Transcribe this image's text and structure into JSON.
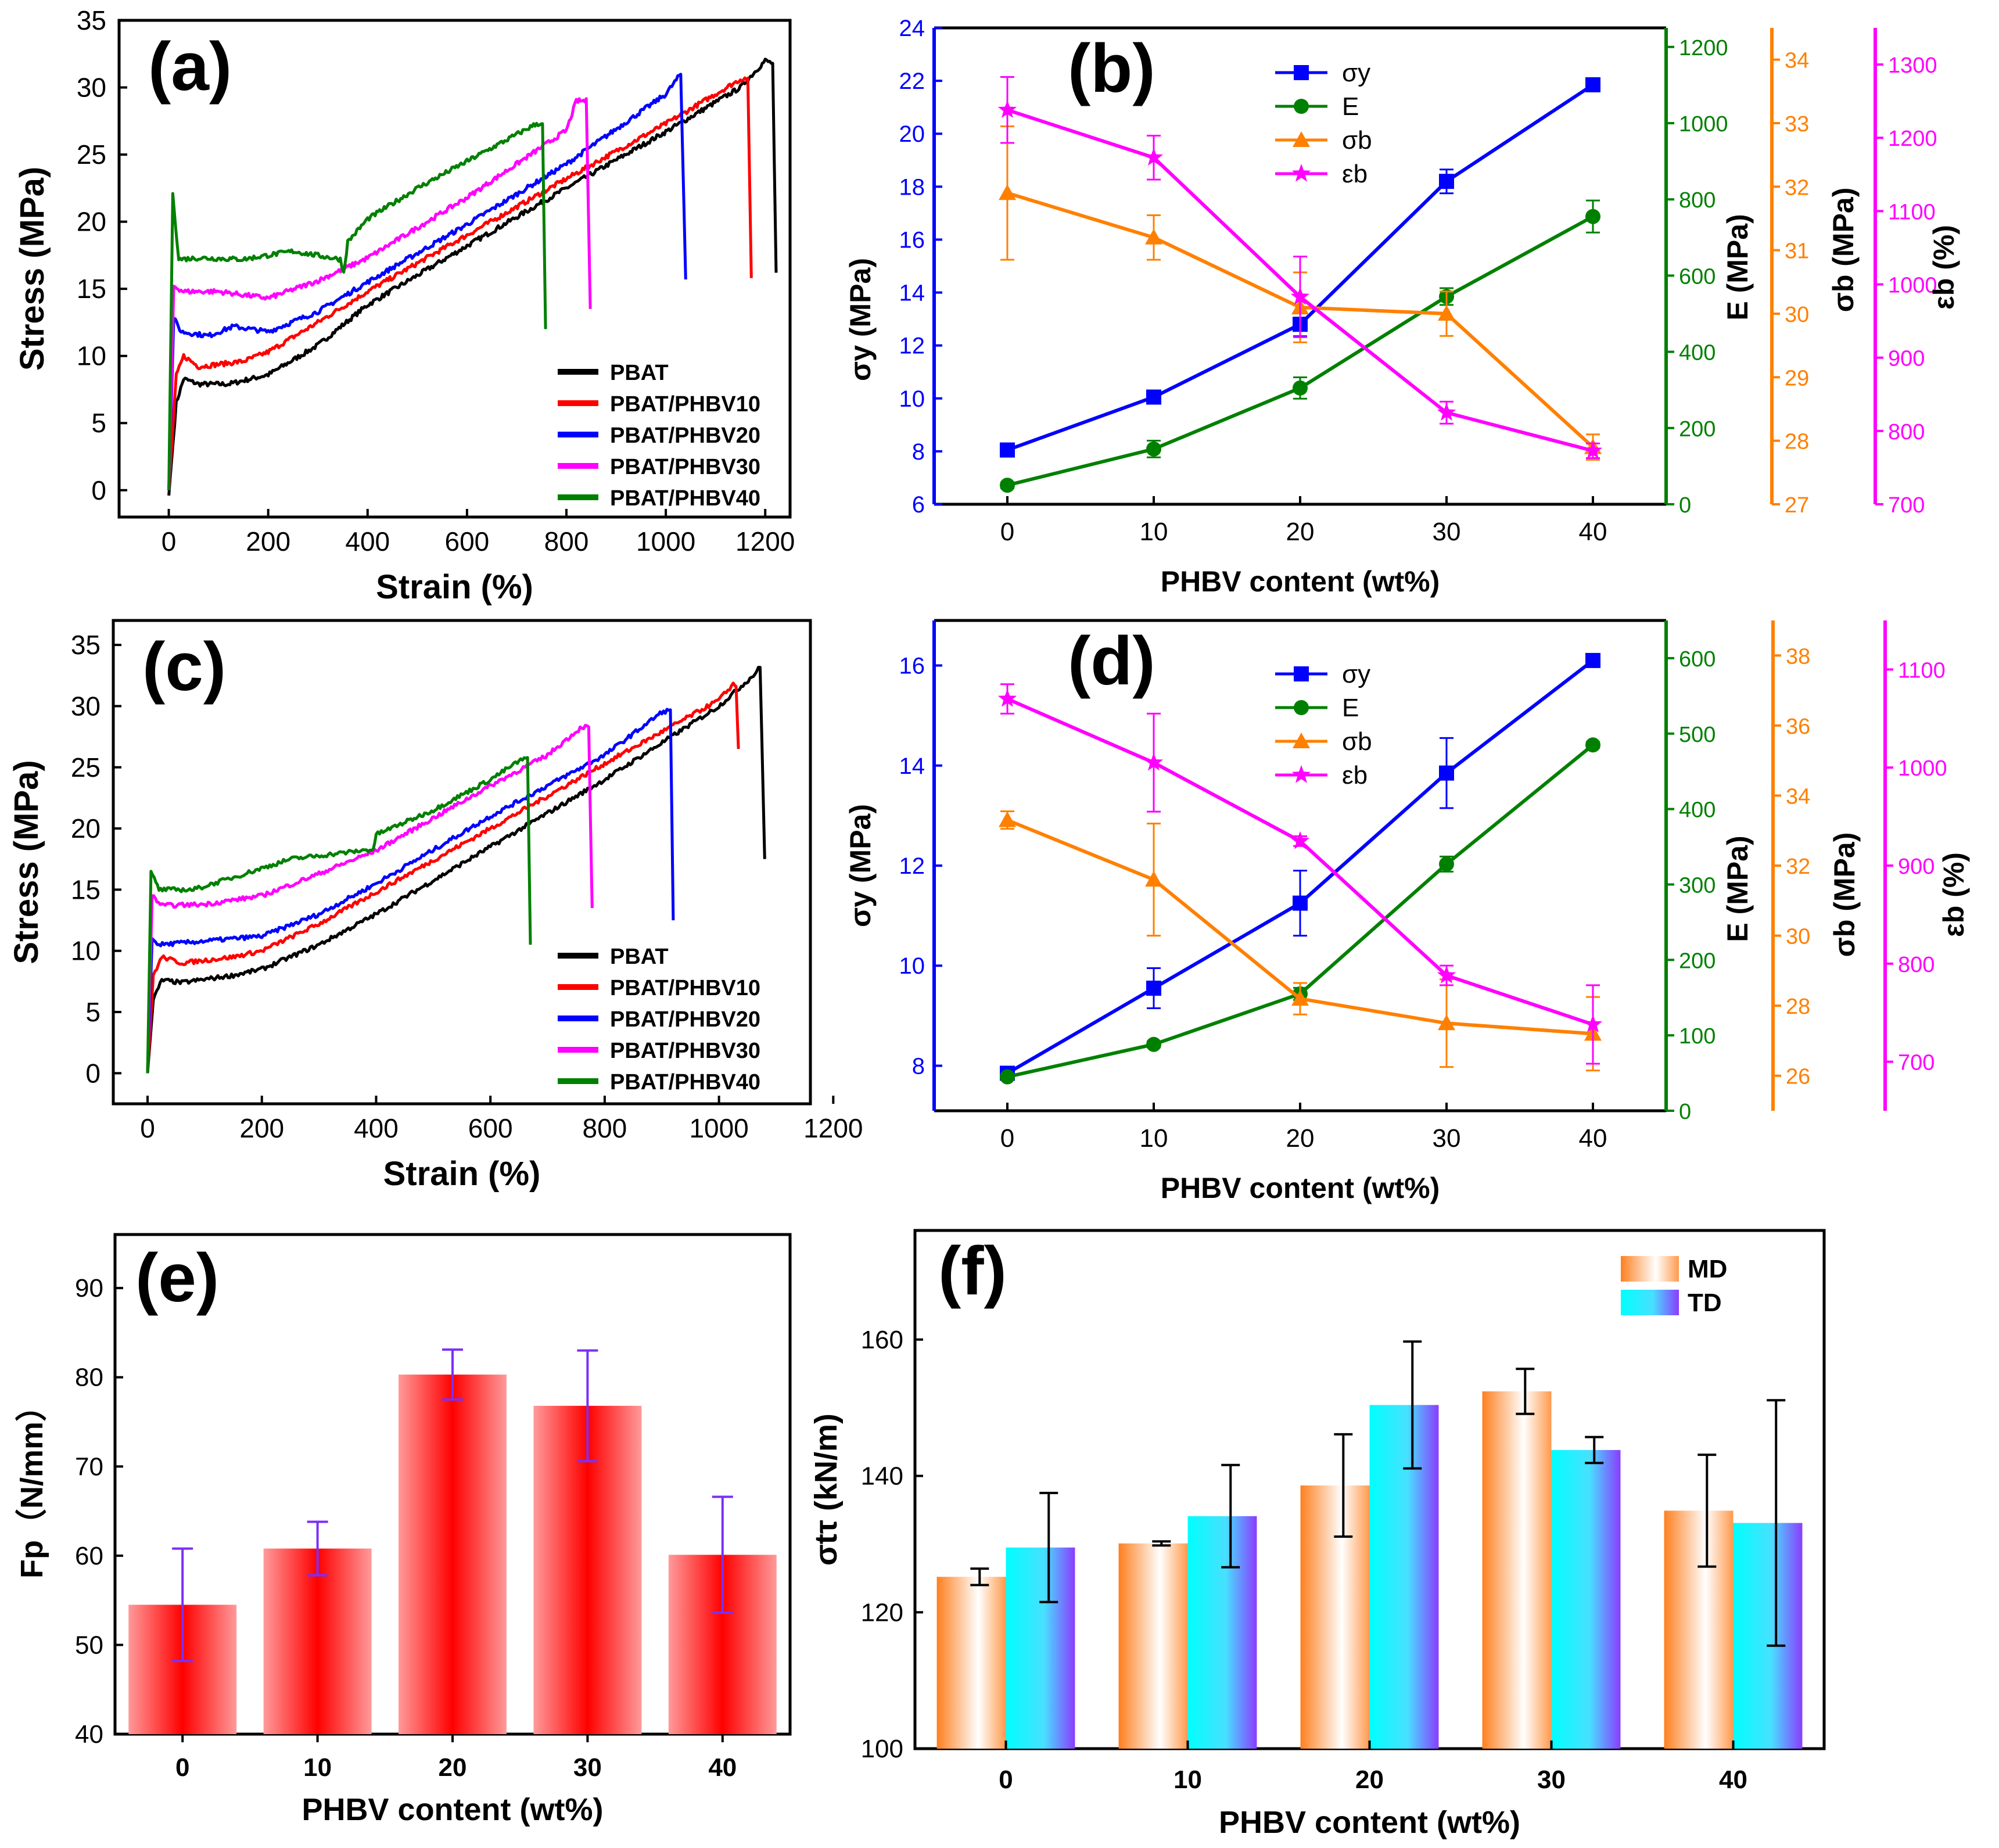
{
  "chart_data": [
    {
      "id": "a",
      "type": "line",
      "panel_label": "(a)",
      "xlabel": "Strain  (%)",
      "ylabel": "Stress  (MPa)",
      "xlim": [
        -100,
        1250
      ],
      "ylim": [
        -2,
        35
      ],
      "xticks": [
        0,
        200,
        400,
        600,
        800,
        1000,
        1200
      ],
      "yticks": [
        0,
        5,
        10,
        15,
        20,
        25,
        30,
        35
      ],
      "legend_position": "bottom-right",
      "series": [
        {
          "name": "PBAT",
          "color": "#000000",
          "points": [
            [
              0,
              -0.4
            ],
            [
              15,
              6.5
            ],
            [
              30,
              8.3
            ],
            [
              60,
              7.9
            ],
            [
              120,
              7.9
            ],
            [
              200,
              8.6
            ],
            [
              300,
              10.8
            ],
            [
              400,
              13.8
            ],
            [
              600,
              18.2
            ],
            [
              800,
              22.5
            ],
            [
              1000,
              26.7
            ],
            [
              1150,
              30
            ],
            [
              1200,
              32
            ],
            [
              1215,
              31.8
            ],
            [
              1222,
              16.2
            ]
          ]
        },
        {
          "name": "PBAT/PHBV10",
          "color": "#ff0000",
          "points": [
            [
              0,
              0
            ],
            [
              15,
              8.5
            ],
            [
              30,
              10
            ],
            [
              60,
              9.2
            ],
            [
              150,
              9.6
            ],
            [
              200,
              10.3
            ],
            [
              300,
              12.5
            ],
            [
              400,
              14.8
            ],
            [
              600,
              19
            ],
            [
              800,
              23.2
            ],
            [
              1000,
              27.3
            ],
            [
              1150,
              30.6
            ],
            [
              1165,
              30.7
            ],
            [
              1172,
              15.8
            ]
          ]
        },
        {
          "name": "PBAT/PHBV20",
          "color": "#0000ff",
          "points": [
            [
              0,
              0
            ],
            [
              10,
              12.8
            ],
            [
              25,
              11.8
            ],
            [
              80,
              11.5
            ],
            [
              130,
              12.2
            ],
            [
              200,
              11.8
            ],
            [
              300,
              13.3
            ],
            [
              400,
              15.5
            ],
            [
              600,
              19.8
            ],
            [
              800,
              24.3
            ],
            [
              1000,
              29.5
            ],
            [
              1030,
              31
            ],
            [
              1040,
              15.7
            ]
          ]
        },
        {
          "name": "PBAT/PHBV30",
          "color": "#ff00ff",
          "points": [
            [
              0,
              0
            ],
            [
              10,
              15.2
            ],
            [
              30,
              14.8
            ],
            [
              100,
              14.8
            ],
            [
              200,
              14.3
            ],
            [
              300,
              15.6
            ],
            [
              400,
              17.3
            ],
            [
              600,
              21.8
            ],
            [
              800,
              26.8
            ],
            [
              820,
              29
            ],
            [
              840,
              29
            ],
            [
              848,
              13.5
            ]
          ]
        },
        {
          "name": "PBAT/PHBV40",
          "color": "#008000",
          "points": [
            [
              0,
              0
            ],
            [
              8,
              22.1
            ],
            [
              20,
              17.2
            ],
            [
              60,
              17.3
            ],
            [
              150,
              17.2
            ],
            [
              250,
              17.8
            ],
            [
              345,
              17.2
            ],
            [
              352,
              16.2
            ],
            [
              360,
              18.5
            ],
            [
              400,
              20.2
            ],
            [
              500,
              22.5
            ],
            [
              600,
              24.5
            ],
            [
              700,
              26.5
            ],
            [
              740,
              27.3
            ],
            [
              752,
              27.3
            ],
            [
              758,
              12
            ]
          ]
        }
      ]
    },
    {
      "id": "b",
      "type": "line",
      "panel_label": "(b)",
      "xlabel": "PHBV content (wt%)",
      "x": [
        0,
        10,
        20,
        30,
        40
      ],
      "xlim": [
        -5,
        45
      ],
      "legend_position": "top-center",
      "series": [
        {
          "name": "σy",
          "color": "#0000ff",
          "marker": "square",
          "axis": "σy (MPa)",
          "values": [
            8.05,
            10.05,
            12.8,
            18.2,
            21.85
          ],
          "errors": [
            0.15,
            0.15,
            0.45,
            0.45,
            0.15
          ]
        },
        {
          "name": "E",
          "color": "#008000",
          "marker": "circle",
          "axis": "E (MPa)",
          "values": [
            50,
            145,
            305,
            545,
            755
          ],
          "errors": [
            8,
            22,
            28,
            22,
            42
          ]
        },
        {
          "name": "σb",
          "color": "#ff8000",
          "marker": "triangle",
          "axis": "σb (MPa)",
          "values": [
            31.9,
            31.2,
            30.1,
            30,
            27.9
          ],
          "errors": [
            1.05,
            0.35,
            0.55,
            0.35,
            0.2
          ]
        },
        {
          "name": "εb",
          "color": "#ff00ff",
          "marker": "star",
          "axis": "εb (%)",
          "values": [
            1238,
            1173,
            983,
            825,
            773
          ],
          "errors": [
            45,
            30,
            55,
            15,
            10
          ]
        }
      ],
      "axes": [
        {
          "label": "σy (MPa)",
          "color": "#0000ff",
          "range": [
            6,
            24
          ],
          "ticks": [
            6,
            8,
            10,
            12,
            14,
            16,
            18,
            20,
            22,
            24
          ]
        },
        {
          "label": "E (MPa)",
          "color": "#008000",
          "range": [
            0,
            1250
          ],
          "ticks": [
            0,
            200,
            400,
            600,
            800,
            1000,
            1200
          ]
        },
        {
          "label": "σb (MPa)",
          "color": "#ff8000",
          "range": [
            27,
            34.5
          ],
          "ticks": [
            27,
            28,
            29,
            30,
            31,
            32,
            33,
            34
          ]
        },
        {
          "label": "εb (%)",
          "color": "#ff00ff",
          "range": [
            700,
            1350
          ],
          "ticks": [
            700,
            800,
            900,
            1000,
            1100,
            1200,
            1300
          ]
        }
      ]
    },
    {
      "id": "c",
      "type": "line",
      "panel_label": "(c)",
      "xlabel": "Strain  (%)",
      "ylabel": "Stress  (MPa)",
      "xlim": [
        -60,
        1160
      ],
      "ylim": [
        -2.5,
        37
      ],
      "xticks": [
        0,
        200,
        400,
        600,
        800,
        1000,
        1200
      ],
      "yticks": [
        0,
        5,
        10,
        15,
        20,
        25,
        30,
        35
      ],
      "legend_position": "bottom-right",
      "series": [
        {
          "name": "PBAT",
          "color": "#000000",
          "points": [
            [
              0,
              0
            ],
            [
              10,
              6
            ],
            [
              25,
              7.6
            ],
            [
              60,
              7.4
            ],
            [
              150,
              8
            ],
            [
              200,
              8.5
            ],
            [
              300,
              10.5
            ],
            [
              400,
              13
            ],
            [
              600,
              18.5
            ],
            [
              800,
              24
            ],
            [
              1000,
              30
            ],
            [
              1060,
              32.5
            ],
            [
              1072,
              33.2
            ],
            [
              1080,
              17.5
            ]
          ]
        },
        {
          "name": "PBAT/PHBV10",
          "color": "#ff0000",
          "points": [
            [
              0,
              0
            ],
            [
              10,
              8
            ],
            [
              25,
              9.5
            ],
            [
              60,
              9
            ],
            [
              150,
              9.5
            ],
            [
              200,
              10
            ],
            [
              300,
              12.2
            ],
            [
              400,
              14.8
            ],
            [
              600,
              20
            ],
            [
              800,
              25.3
            ],
            [
              1000,
              30.5
            ],
            [
              1025,
              31.8
            ],
            [
              1030,
              31.6
            ],
            [
              1034,
              26.5
            ]
          ]
        },
        {
          "name": "PBAT/PHBV20",
          "color": "#0000ff",
          "points": [
            [
              0,
              0
            ],
            [
              8,
              11
            ],
            [
              20,
              10.5
            ],
            [
              100,
              10.8
            ],
            [
              200,
              11.2
            ],
            [
              300,
              13
            ],
            [
              400,
              15.5
            ],
            [
              600,
              21
            ],
            [
              800,
              26
            ],
            [
              900,
              29.5
            ],
            [
              915,
              29.7
            ],
            [
              920,
              12.5
            ]
          ]
        },
        {
          "name": "PBAT/PHBV30",
          "color": "#ff00ff",
          "points": [
            [
              0,
              0
            ],
            [
              8,
              14.5
            ],
            [
              25,
              13.7
            ],
            [
              100,
              13.8
            ],
            [
              200,
              14.5
            ],
            [
              300,
              16.3
            ],
            [
              400,
              18.2
            ],
            [
              600,
              23.5
            ],
            [
              700,
              26
            ],
            [
              760,
              28.3
            ],
            [
              772,
              28.3
            ],
            [
              778,
              13.5
            ]
          ]
        },
        {
          "name": "PBAT/PHBV40",
          "color": "#008000",
          "points": [
            [
              0,
              0
            ],
            [
              6,
              16.5
            ],
            [
              20,
              15
            ],
            [
              80,
              15
            ],
            [
              150,
              16
            ],
            [
              250,
              17.5
            ],
            [
              395,
              18.3
            ],
            [
              400,
              19.5
            ],
            [
              500,
              21.5
            ],
            [
              600,
              24
            ],
            [
              650,
              25.5
            ],
            [
              665,
              25.8
            ],
            [
              670,
              10.5
            ]
          ]
        }
      ]
    },
    {
      "id": "d",
      "type": "line",
      "panel_label": "(d)",
      "xlabel": "PHBV content (wt%)",
      "x": [
        0,
        10,
        20,
        30,
        40
      ],
      "xlim": [
        -5,
        45
      ],
      "legend_position": "top-center",
      "series": [
        {
          "name": "σy",
          "color": "#0000ff",
          "marker": "square",
          "axis": "σy (MPa)",
          "values": [
            7.85,
            9.55,
            11.25,
            13.85,
            16.1
          ],
          "errors": [
            0.1,
            0.4,
            0.65,
            0.7,
            0.1
          ]
        },
        {
          "name": "E",
          "color": "#008000",
          "marker": "circle",
          "axis": "E (MPa)",
          "values": [
            45,
            88,
            155,
            327,
            485
          ],
          "errors": [
            4,
            4,
            8,
            10,
            4
          ]
        },
        {
          "name": "σb",
          "color": "#ff8000",
          "marker": "triangle",
          "axis": "σb (MPa)",
          "values": [
            33.3,
            31.6,
            28.2,
            27.5,
            27.2
          ],
          "errors": [
            0.25,
            1.6,
            0.45,
            1.25,
            1.05
          ]
        },
        {
          "name": "εb",
          "color": "#ff00ff",
          "marker": "star",
          "axis": "εb (%)",
          "values": [
            1070,
            1005,
            925,
            788,
            738
          ],
          "errors": [
            15,
            50,
            5,
            10,
            40
          ]
        }
      ],
      "axes": [
        {
          "label": "σy (MPa)",
          "color": "#0000ff",
          "range": [
            7.1,
            16.9
          ],
          "ticks": [
            8,
            10,
            12,
            14,
            16
          ]
        },
        {
          "label": "E (MPa)",
          "color": "#008000",
          "range": [
            0,
            650
          ],
          "ticks": [
            0,
            100,
            200,
            300,
            400,
            500,
            600
          ]
        },
        {
          "label": "σb (MPa)",
          "color": "#ff8000",
          "range": [
            25,
            39
          ],
          "ticks": [
            26,
            28,
            30,
            32,
            34,
            36,
            38
          ]
        },
        {
          "label": "εb (%)",
          "color": "#ff00ff",
          "range": [
            650,
            1150
          ],
          "ticks": [
            700,
            800,
            900,
            1000,
            1100
          ]
        }
      ]
    },
    {
      "id": "e",
      "type": "bar",
      "panel_label": "(e)",
      "xlabel": "PHBV content (wt%)",
      "ylabel": "Fp（N/mm）",
      "categories": [
        "0",
        "10",
        "20",
        "30",
        "40"
      ],
      "values": [
        54.5,
        60.8,
        80.3,
        76.8,
        60.1
      ],
      "errors": [
        6.3,
        3,
        2.8,
        6.2,
        6.5
      ],
      "ylim": [
        40,
        96
      ],
      "yticks": [
        40,
        50,
        60,
        70,
        80,
        90
      ],
      "bar_color": "#ff0000",
      "error_color": "#7b2ff7"
    },
    {
      "id": "f",
      "type": "bar",
      "panel_label": "(f)",
      "xlabel": "PHBV content (wt%)",
      "ylabel": "σtτ (kN/m)",
      "categories": [
        "0",
        "10",
        "20",
        "30",
        "40"
      ],
      "ylim": [
        100,
        176
      ],
      "yticks": [
        100,
        120,
        140,
        160
      ],
      "legend_position": "top-right",
      "series": [
        {
          "name": "MD",
          "color": "#ff8c2a",
          "values": [
            125.2,
            130.1,
            138.6,
            152.4,
            134.9
          ],
          "errors": [
            1.2,
            0.3,
            7.5,
            3.3,
            8.2
          ]
        },
        {
          "name": "TD",
          "color": "#00ffff",
          "values": [
            129.5,
            134.1,
            150.4,
            143.8,
            133.1
          ],
          "errors": [
            8,
            7.5,
            9.3,
            1.9,
            18
          ]
        }
      ]
    }
  ]
}
